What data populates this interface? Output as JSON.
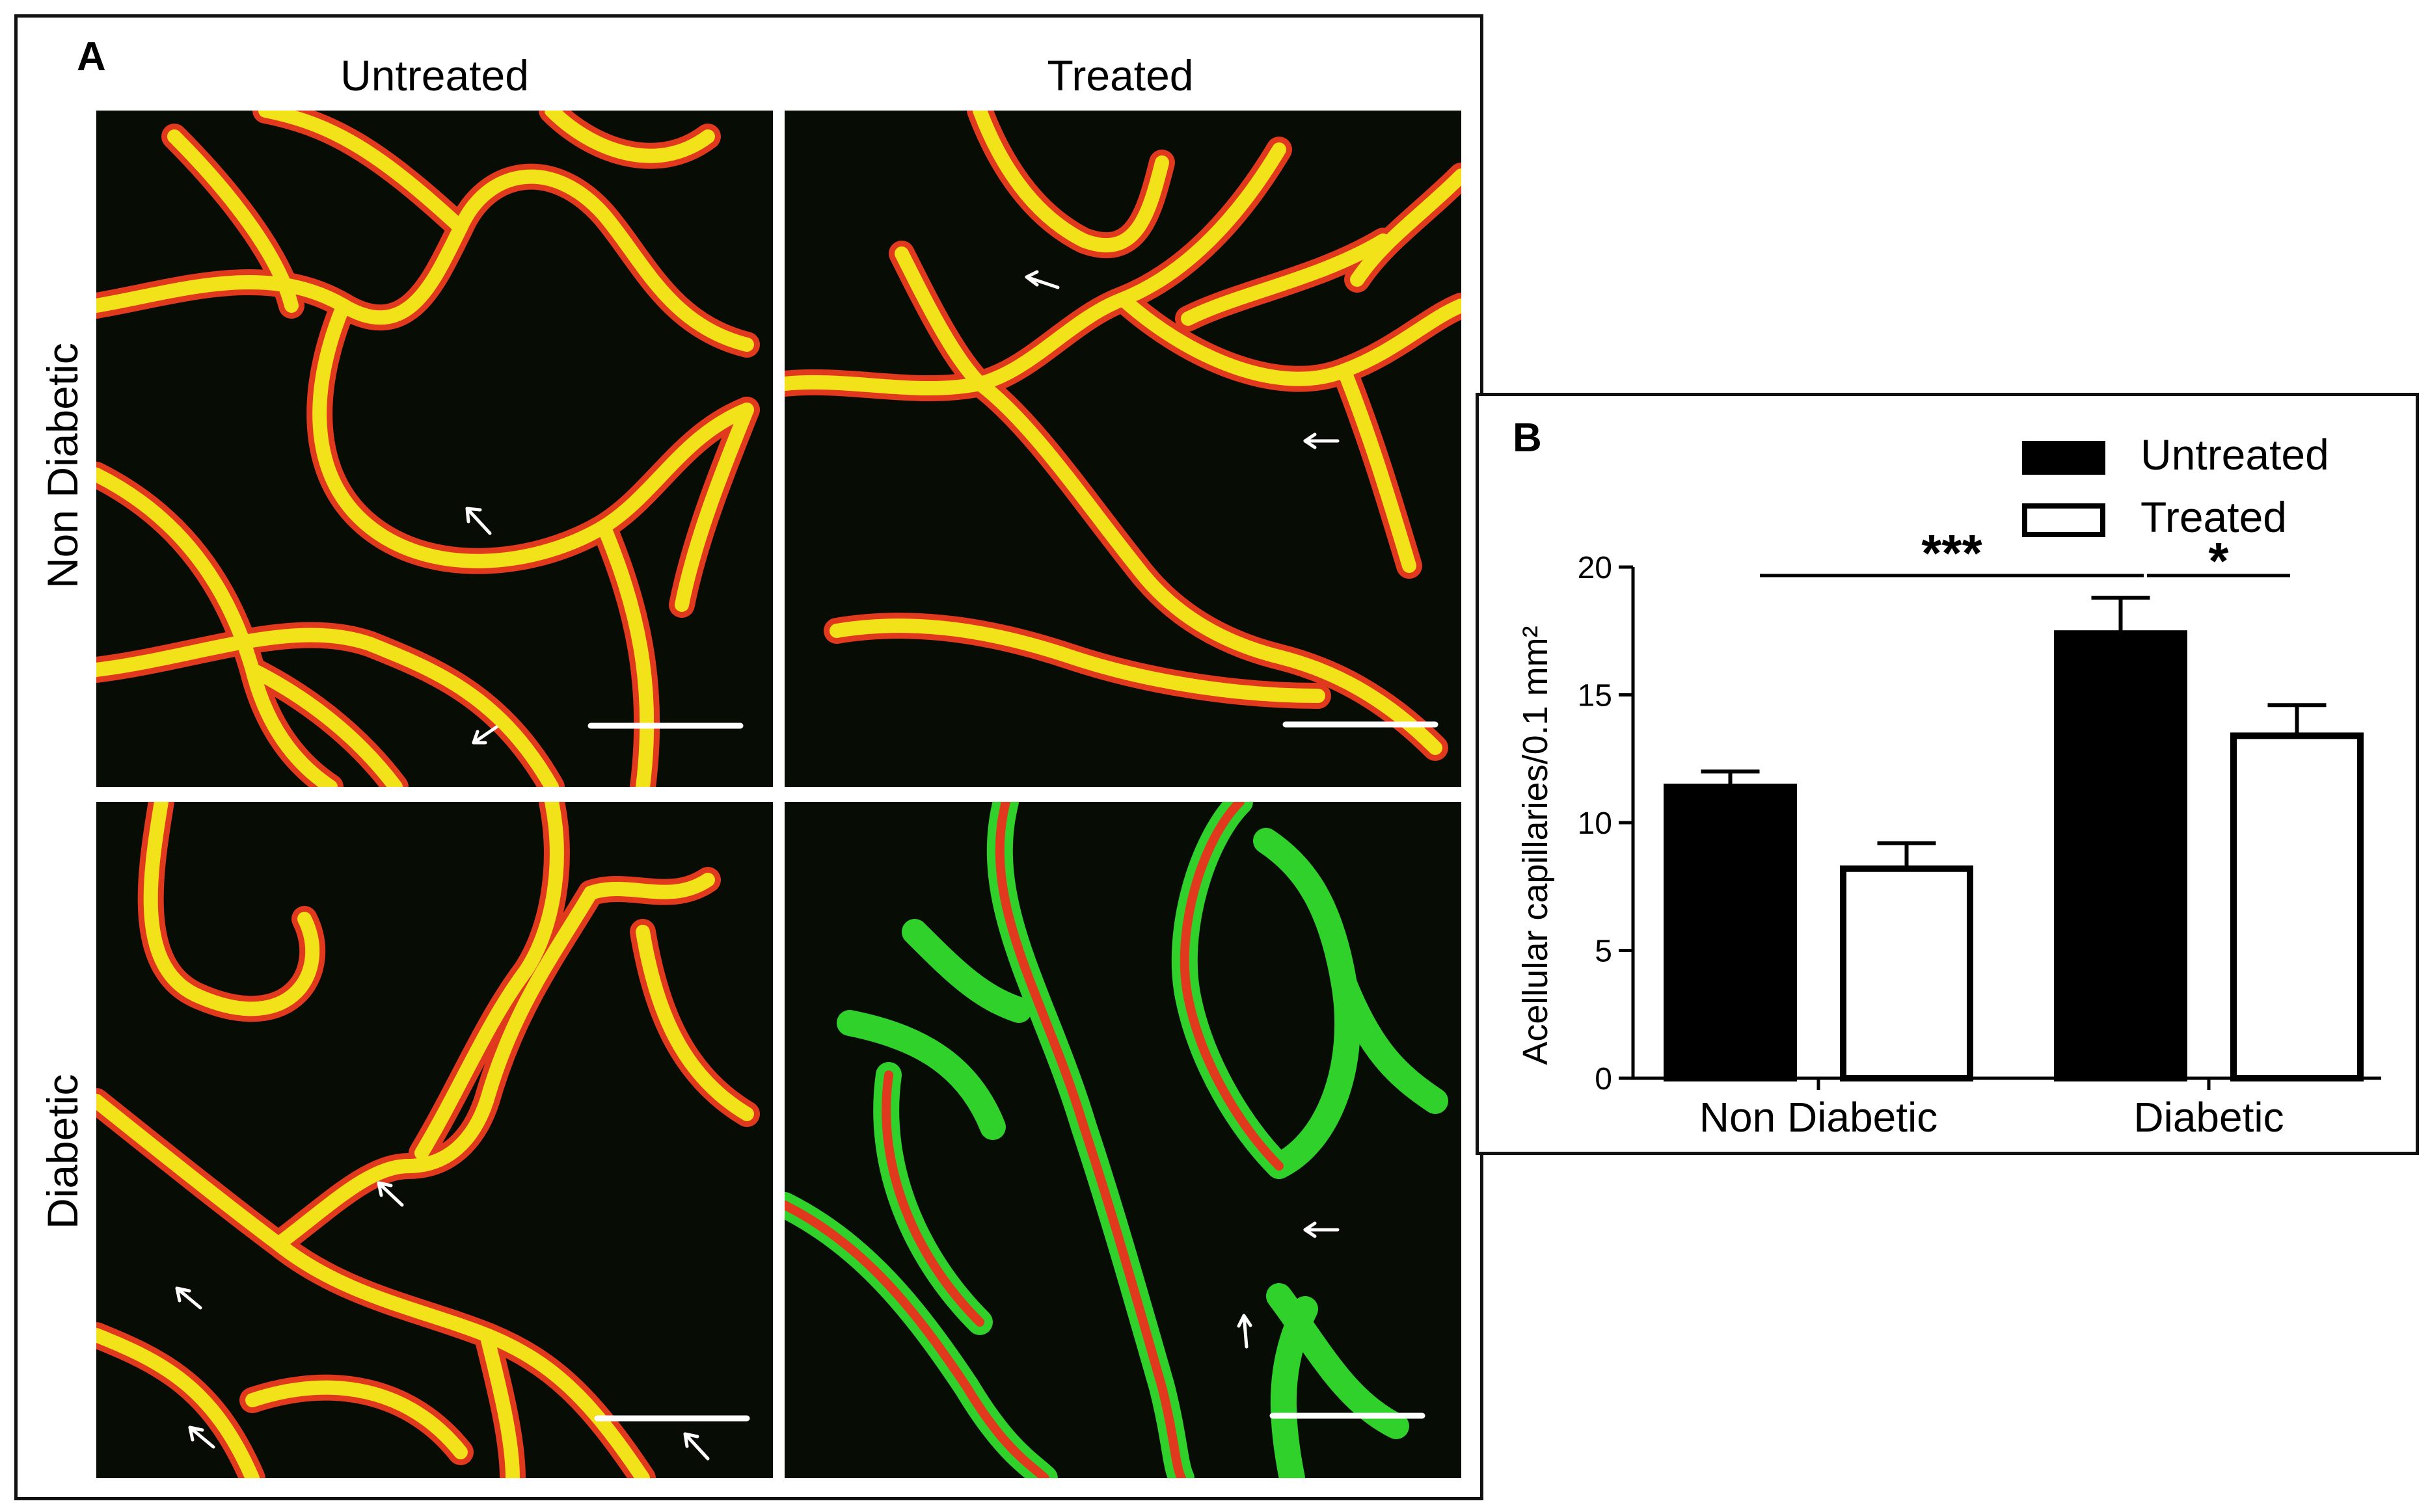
{
  "figure": {
    "panel_a": {
      "letter": "A",
      "column_labels": [
        "Untreated",
        "Treated"
      ],
      "row_labels": [
        "Non Diabetic",
        "Diabetic"
      ],
      "panels": [
        {
          "row": "Non Diabetic",
          "column": "Untreated",
          "arrows": 2,
          "scale_bar": true
        },
        {
          "row": "Non Diabetic",
          "column": "Treated",
          "arrows": 2,
          "scale_bar": true
        },
        {
          "row": "Diabetic",
          "column": "Untreated",
          "arrows": 4,
          "scale_bar": true
        },
        {
          "row": "Diabetic",
          "column": "Treated",
          "arrows": 2,
          "scale_bar": true
        }
      ],
      "colors": {
        "vessel_yellow": "#f2e21a",
        "vessel_red": "#e0391d",
        "vessel_green": "#2fd12a",
        "background": "#070c04"
      }
    },
    "panel_b": {
      "letter": "B"
    }
  },
  "chart_data": {
    "type": "bar",
    "categories": [
      "Non Diabetic",
      "Diabetic"
    ],
    "series": [
      {
        "name": "Untreated",
        "values": [
          11.4,
          17.4
        ],
        "errors": [
          0.6,
          1.4
        ],
        "fill": "#000000"
      },
      {
        "name": "Treated",
        "values": [
          8.2,
          13.4
        ],
        "errors": [
          1.0,
          1.2
        ],
        "fill": "#ffffff"
      }
    ],
    "ylabel": "Acellular capillaries/0.1 mm²",
    "ylim": [
      0,
      20
    ],
    "yticks": [
      "0",
      "5",
      "10",
      "15",
      "20"
    ],
    "legend_placement": "top-right",
    "significance": [
      {
        "label": "***",
        "from": "Non Diabetic",
        "to": "Diabetic"
      },
      {
        "label": "*",
        "from": "Diabetic Untreated",
        "to": "Diabetic Treated"
      }
    ],
    "grid": false
  }
}
